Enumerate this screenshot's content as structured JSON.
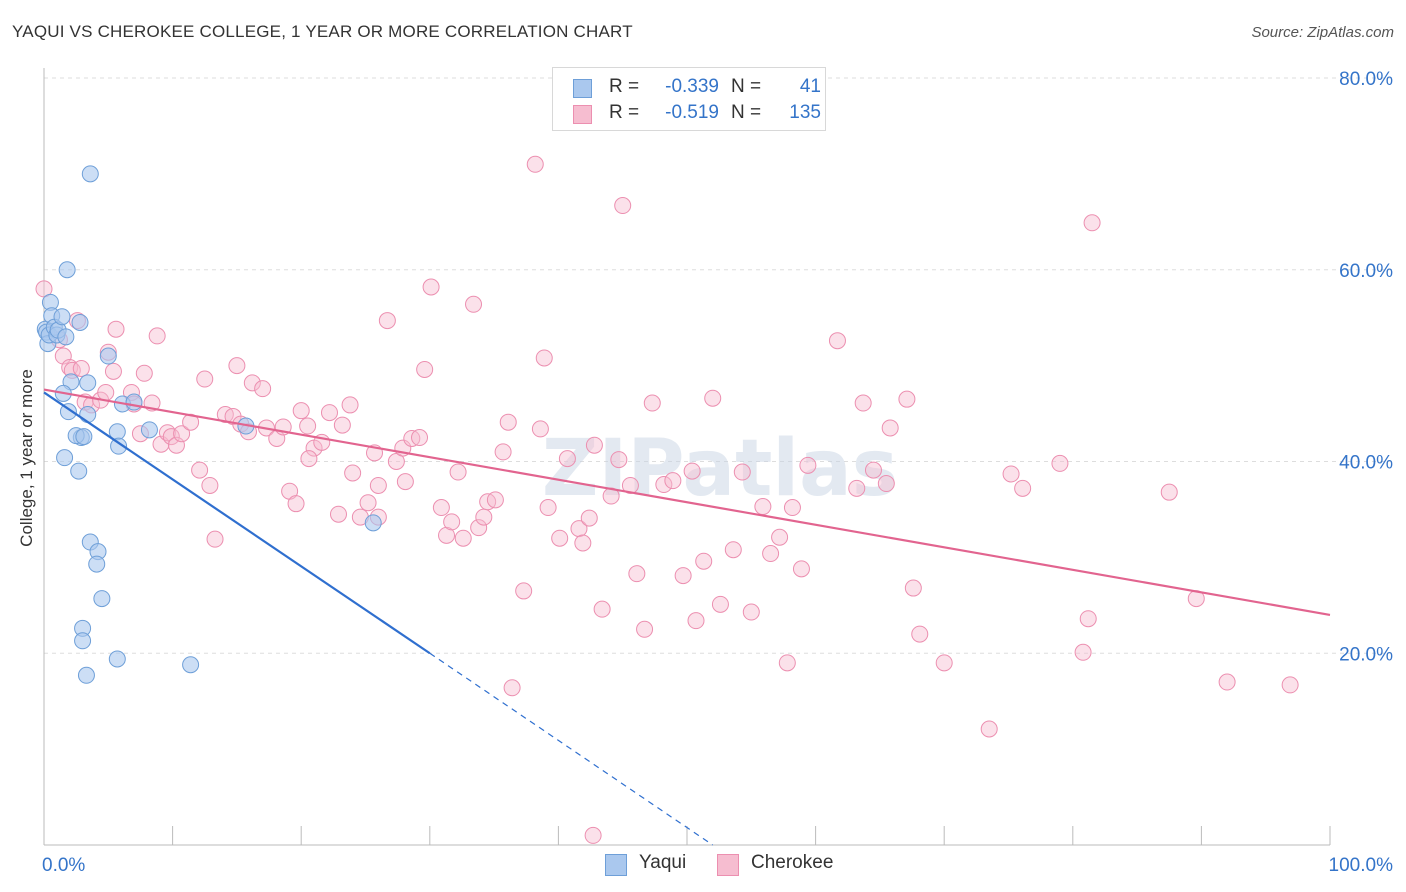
{
  "title": "YAQUI VS CHEROKEE COLLEGE, 1 YEAR OR MORE CORRELATION CHART",
  "source": "Source: ZipAtlas.com",
  "colors": {
    "yaqui_fill": "#aac8ee",
    "yaqui_stroke": "#6e9fd8",
    "yaqui_line": "#2f6fcf",
    "cherokee_fill": "#f6bdd0",
    "cherokee_stroke": "#ec8fb0",
    "cherokee_line": "#e2648f",
    "tick_label": "#3474c9",
    "grid": "#dddddd"
  },
  "legend": {
    "rows": [
      {
        "r_label": "R =",
        "r_value": "-0.339",
        "n_label": "N =",
        "n_value": "41"
      },
      {
        "r_label": "R =",
        "r_value": "-0.519",
        "n_label": "N =",
        "n_value": "135"
      }
    ]
  },
  "bottom_legend": {
    "yaqui": "Yaqui",
    "cherokee": "Cherokee"
  },
  "chart_data": {
    "type": "scatter",
    "title": "YAQUI VS CHEROKEE COLLEGE, 1 YEAR OR MORE CORRELATION CHART",
    "xlabel": "",
    "ylabel": "College, 1 year or more",
    "xlim": [
      0,
      100
    ],
    "ylim": [
      0,
      80
    ],
    "x_tick_labels": [
      {
        "value": 0,
        "label": "0.0%"
      },
      {
        "value": 100,
        "label": "100.0%"
      }
    ],
    "y_tick_labels": [
      {
        "value": 20,
        "label": "20.0%"
      },
      {
        "value": 40,
        "label": "40.0%"
      },
      {
        "value": 60,
        "label": "60.0%"
      },
      {
        "value": 80,
        "label": "80.0%"
      }
    ],
    "x_minor_ticks": [
      10,
      20,
      30,
      40,
      50,
      60,
      70,
      80,
      90,
      100
    ],
    "grid": true,
    "watermark": "ZIPatlas",
    "series": [
      {
        "name": "Yaqui",
        "r": -0.339,
        "n": 41,
        "trend": {
          "x0": 0,
          "y0": 47.2,
          "x1": 30,
          "y1": 20,
          "dash_to_x": 52,
          "dash_to_y": 0
        },
        "points": [
          [
            0.1,
            53.8
          ],
          [
            0.2,
            53.5
          ],
          [
            0.3,
            52.3
          ],
          [
            0.4,
            53.2
          ],
          [
            0.5,
            56.6
          ],
          [
            0.6,
            55.2
          ],
          [
            0.8,
            54.0
          ],
          [
            1.0,
            53.2
          ],
          [
            1.1,
            53.7
          ],
          [
            1.4,
            55.1
          ],
          [
            1.7,
            53.0
          ],
          [
            1.8,
            60.0
          ],
          [
            2.1,
            48.3
          ],
          [
            1.5,
            47.1
          ],
          [
            1.9,
            45.2
          ],
          [
            1.6,
            40.4
          ],
          [
            2.8,
            54.5
          ],
          [
            2.9,
            42.5
          ],
          [
            2.5,
            42.7
          ],
          [
            3.1,
            42.6
          ],
          [
            3.4,
            48.2
          ],
          [
            2.7,
            39.0
          ],
          [
            3.4,
            44.9
          ],
          [
            3.6,
            70.0
          ],
          [
            3.6,
            31.6
          ],
          [
            4.2,
            30.6
          ],
          [
            4.1,
            29.3
          ],
          [
            4.5,
            25.7
          ],
          [
            3.0,
            22.6
          ],
          [
            3.0,
            21.3
          ],
          [
            3.3,
            17.7
          ],
          [
            5.0,
            51.0
          ],
          [
            5.7,
            19.4
          ],
          [
            6.1,
            46.0
          ],
          [
            5.7,
            43.1
          ],
          [
            5.8,
            41.6
          ],
          [
            7.0,
            46.2
          ],
          [
            8.2,
            43.3
          ],
          [
            11.4,
            18.8
          ],
          [
            15.7,
            43.7
          ],
          [
            25.6,
            33.6
          ]
        ]
      },
      {
        "name": "Cherokee",
        "r": -0.519,
        "n": 135,
        "trend": {
          "x0": 0,
          "y0": 47.5,
          "x1": 100,
          "y1": 24.0
        },
        "points": [
          [
            0.0,
            58.0
          ],
          [
            1.2,
            52.7
          ],
          [
            1.5,
            51.0
          ],
          [
            2.0,
            49.8
          ],
          [
            2.2,
            49.5
          ],
          [
            2.6,
            54.7
          ],
          [
            2.9,
            49.7
          ],
          [
            3.2,
            46.2
          ],
          [
            3.7,
            45.9
          ],
          [
            4.4,
            46.4
          ],
          [
            4.8,
            47.2
          ],
          [
            5.0,
            51.4
          ],
          [
            5.4,
            49.4
          ],
          [
            5.6,
            53.8
          ],
          [
            6.8,
            47.2
          ],
          [
            7.0,
            46.0
          ],
          [
            7.5,
            42.9
          ],
          [
            7.8,
            49.2
          ],
          [
            8.4,
            46.1
          ],
          [
            8.8,
            53.1
          ],
          [
            9.1,
            41.8
          ],
          [
            9.6,
            43.0
          ],
          [
            9.9,
            42.6
          ],
          [
            10.3,
            41.7
          ],
          [
            10.7,
            42.9
          ],
          [
            11.4,
            44.1
          ],
          [
            12.1,
            39.1
          ],
          [
            12.5,
            48.6
          ],
          [
            12.9,
            37.5
          ],
          [
            13.3,
            31.9
          ],
          [
            14.1,
            44.9
          ],
          [
            14.7,
            44.7
          ],
          [
            15.0,
            50.0
          ],
          [
            15.3,
            43.9
          ],
          [
            15.9,
            43.1
          ],
          [
            16.2,
            48.2
          ],
          [
            17.0,
            47.6
          ],
          [
            17.3,
            43.5
          ],
          [
            18.1,
            42.4
          ],
          [
            18.6,
            43.6
          ],
          [
            19.1,
            36.9
          ],
          [
            19.6,
            35.6
          ],
          [
            20.0,
            45.3
          ],
          [
            20.5,
            43.7
          ],
          [
            21.0,
            41.4
          ],
          [
            21.6,
            42.0
          ],
          [
            22.2,
            45.1
          ],
          [
            22.9,
            34.5
          ],
          [
            23.2,
            43.8
          ],
          [
            23.8,
            45.9
          ],
          [
            24.0,
            38.8
          ],
          [
            24.6,
            34.2
          ],
          [
            25.2,
            35.7
          ],
          [
            25.7,
            40.9
          ],
          [
            26.0,
            34.2
          ],
          [
            26.7,
            54.7
          ],
          [
            27.4,
            40.0
          ],
          [
            27.9,
            41.4
          ],
          [
            28.1,
            37.9
          ],
          [
            28.6,
            42.4
          ],
          [
            29.2,
            42.5
          ],
          [
            29.6,
            49.6
          ],
          [
            30.1,
            58.2
          ],
          [
            30.9,
            35.2
          ],
          [
            31.3,
            32.3
          ],
          [
            31.7,
            33.7
          ],
          [
            32.2,
            38.9
          ],
          [
            32.6,
            32.0
          ],
          [
            33.4,
            56.4
          ],
          [
            33.8,
            33.1
          ],
          [
            34.2,
            34.2
          ],
          [
            34.5,
            35.8
          ],
          [
            35.1,
            36.0
          ],
          [
            35.7,
            41.0
          ],
          [
            36.1,
            44.1
          ],
          [
            37.3,
            26.5
          ],
          [
            36.4,
            16.4
          ],
          [
            38.6,
            43.4
          ],
          [
            38.9,
            50.8
          ],
          [
            39.2,
            35.2
          ],
          [
            40.1,
            32.0
          ],
          [
            40.7,
            40.3
          ],
          [
            41.6,
            33.0
          ],
          [
            41.9,
            31.5
          ],
          [
            42.4,
            34.1
          ],
          [
            42.8,
            41.7
          ],
          [
            43.4,
            24.6
          ],
          [
            44.1,
            36.4
          ],
          [
            44.7,
            40.2
          ],
          [
            45.0,
            66.7
          ],
          [
            45.6,
            37.5
          ],
          [
            46.1,
            28.3
          ],
          [
            46.7,
            22.5
          ],
          [
            47.3,
            46.1
          ],
          [
            48.2,
            37.6
          ],
          [
            48.9,
            38.0
          ],
          [
            49.7,
            28.1
          ],
          [
            50.4,
            39.0
          ],
          [
            50.7,
            23.4
          ],
          [
            51.3,
            29.6
          ],
          [
            52.0,
            46.6
          ],
          [
            52.6,
            25.1
          ],
          [
            53.6,
            30.8
          ],
          [
            54.3,
            38.9
          ],
          [
            55.0,
            24.3
          ],
          [
            55.9,
            35.3
          ],
          [
            56.5,
            30.4
          ],
          [
            57.2,
            32.1
          ],
          [
            57.8,
            19.0
          ],
          [
            58.2,
            35.2
          ],
          [
            58.9,
            28.8
          ],
          [
            59.4,
            39.6
          ],
          [
            61.7,
            52.6
          ],
          [
            63.2,
            37.2
          ],
          [
            63.7,
            46.1
          ],
          [
            64.5,
            39.1
          ],
          [
            65.5,
            37.7
          ],
          [
            65.8,
            43.5
          ],
          [
            67.1,
            46.5
          ],
          [
            67.6,
            26.8
          ],
          [
            68.1,
            22.0
          ],
          [
            70.0,
            19.0
          ],
          [
            73.5,
            12.1
          ],
          [
            75.2,
            38.7
          ],
          [
            76.1,
            37.2
          ],
          [
            79.0,
            39.8
          ],
          [
            80.8,
            20.1
          ],
          [
            81.2,
            23.6
          ],
          [
            81.5,
            64.9
          ],
          [
            87.5,
            36.8
          ],
          [
            89.6,
            25.7
          ],
          [
            92.0,
            17.0
          ],
          [
            96.9,
            16.7
          ],
          [
            42.7,
            1.0
          ],
          [
            38.2,
            71.0
          ],
          [
            26.0,
            37.5
          ],
          [
            20.6,
            40.3
          ]
        ]
      }
    ]
  }
}
